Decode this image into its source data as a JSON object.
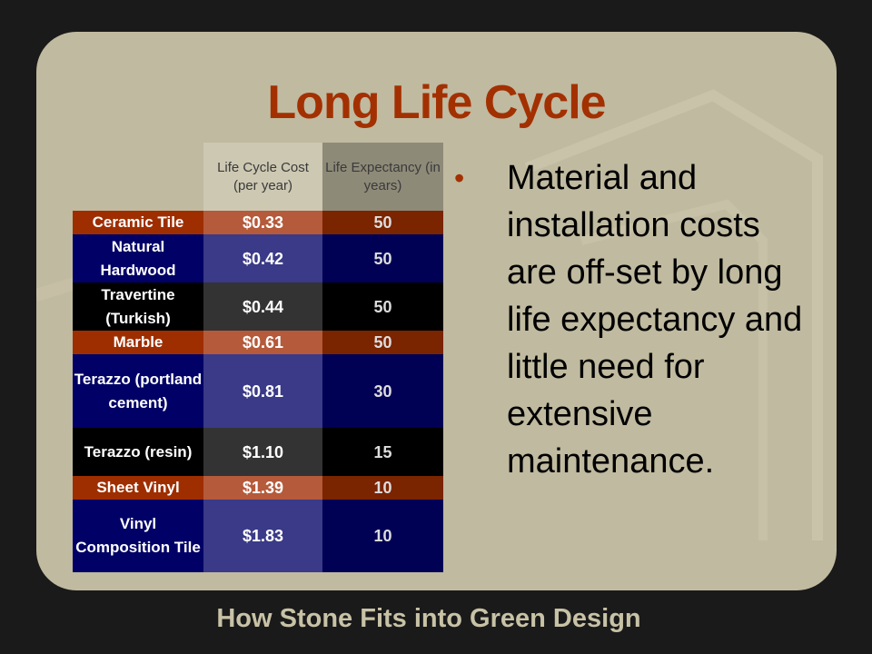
{
  "slide": {
    "title": "Long Life Cycle",
    "footer": "How Stone Fits into Green Design",
    "bullet": "Material and installation costs are off-set by long life expectancy and little need for extensive maintenance.",
    "bullet_icon": "bullet-dot"
  },
  "table": {
    "headers": [
      "",
      "Life Cycle Cost (per year)",
      "Life Expectancy (in years)"
    ],
    "rows": [
      {
        "material": "Ceramic Tile",
        "cost": "$0.33",
        "life": "50",
        "style": "or"
      },
      {
        "material": "Natural Hardwood",
        "cost": "$0.42",
        "life": "50",
        "style": "bl"
      },
      {
        "material": "Travertine (Turkish)",
        "cost": "$0.44",
        "life": "50",
        "style": "bk"
      },
      {
        "material": "Marble",
        "cost": "$0.61",
        "life": "50",
        "style": "or"
      },
      {
        "material": "Terazzo (portland cement)",
        "cost": "$0.81",
        "life": "30",
        "style": "bl"
      },
      {
        "material": "Terazzo (resin)",
        "cost": "$1.10",
        "life": "15",
        "style": "bk"
      },
      {
        "material": "Sheet Vinyl",
        "cost": "$1.39",
        "life": "10",
        "style": "or"
      },
      {
        "material": "Vinyl Composition Tile",
        "cost": "$1.83",
        "life": "10",
        "style": "bl"
      }
    ]
  },
  "colors": {
    "title": "#a33000",
    "orange_row": "#9e2e00",
    "blue_row": "#000066",
    "black_row": "#000000",
    "panel": "#c0baa0"
  }
}
